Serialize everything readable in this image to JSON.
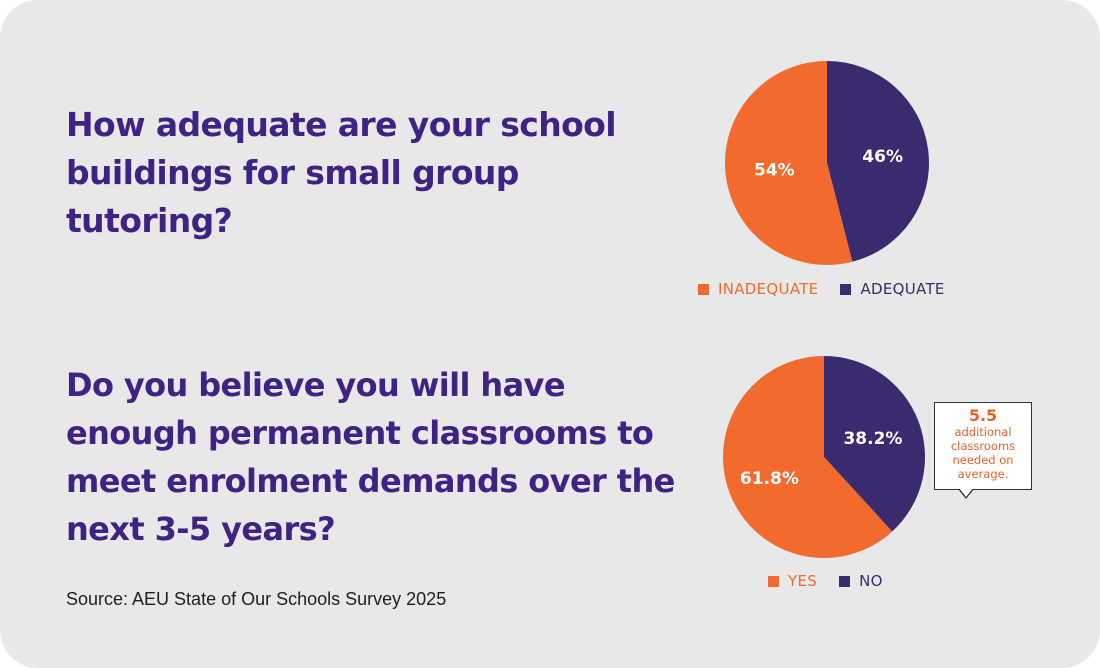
{
  "colors": {
    "orange": "#f26a2e",
    "purple": "#3a2a6e",
    "question": "#3f2384",
    "callout_text": "#e8622a"
  },
  "questions": {
    "q1": "How adequate are your school buildings for small group tutoring?",
    "q2": "Do you believe you will have enough permanent classrooms to meet enrolment demands over the next 3-5 years?"
  },
  "source": "Source: AEU State of Our Schools Survey 2025",
  "callout": {
    "value": "5.5",
    "text": "additional classrooms needed on average."
  },
  "chart_data": [
    {
      "type": "pie",
      "slices": [
        {
          "name": "INADEQUATE",
          "value": 54,
          "label": "54%",
          "color": "#f26a2e"
        },
        {
          "name": "ADEQUATE",
          "value": 46,
          "label": "46%",
          "color": "#3a2a6e"
        }
      ],
      "legend": [
        "INADEQUATE",
        "ADEQUATE"
      ]
    },
    {
      "type": "pie",
      "slices": [
        {
          "name": "YES",
          "value": 61.8,
          "label": "61.8%",
          "color": "#f26a2e"
        },
        {
          "name": "NO",
          "value": 38.2,
          "label": "38.2%",
          "color": "#3a2a6e"
        }
      ],
      "legend": [
        "YES",
        "NO"
      ]
    }
  ]
}
